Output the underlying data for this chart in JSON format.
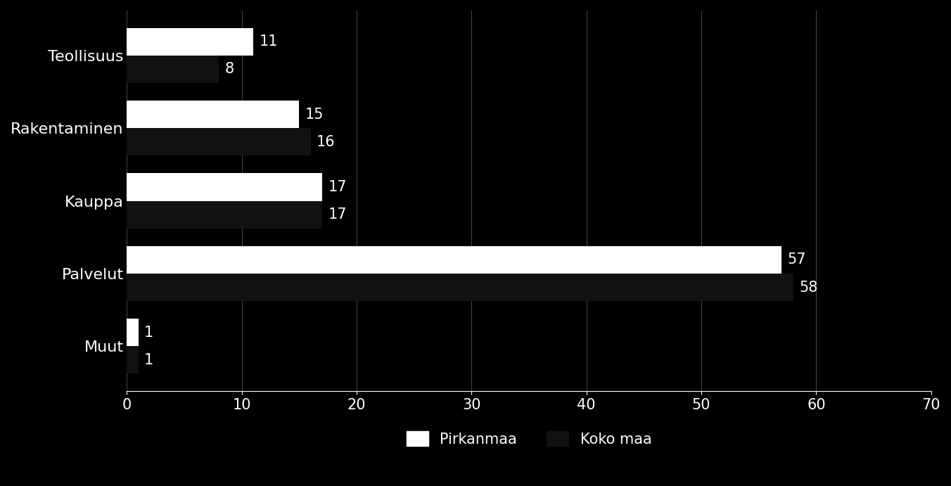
{
  "categories": [
    "Teollisuus",
    "Rakentaminen",
    "Kauppa",
    "Palvelut",
    "Muut"
  ],
  "pirkanmaa": [
    11,
    15,
    17,
    57,
    1
  ],
  "koko_maa": [
    8,
    16,
    17,
    58,
    1
  ],
  "bar_color_pirkanmaa": "#ffffff",
  "bar_color_koko_maa": "#111111",
  "background_color": "#000000",
  "text_color": "#ffffff",
  "xlim": [
    0,
    70
  ],
  "xticks": [
    0,
    10,
    20,
    30,
    40,
    50,
    60,
    70
  ],
  "legend_labels": [
    "Pirkanmaa",
    "Koko maa"
  ],
  "bar_height": 0.38,
  "label_fontsize": 16,
  "tick_fontsize": 15,
  "legend_fontsize": 15,
  "value_fontsize": 15
}
